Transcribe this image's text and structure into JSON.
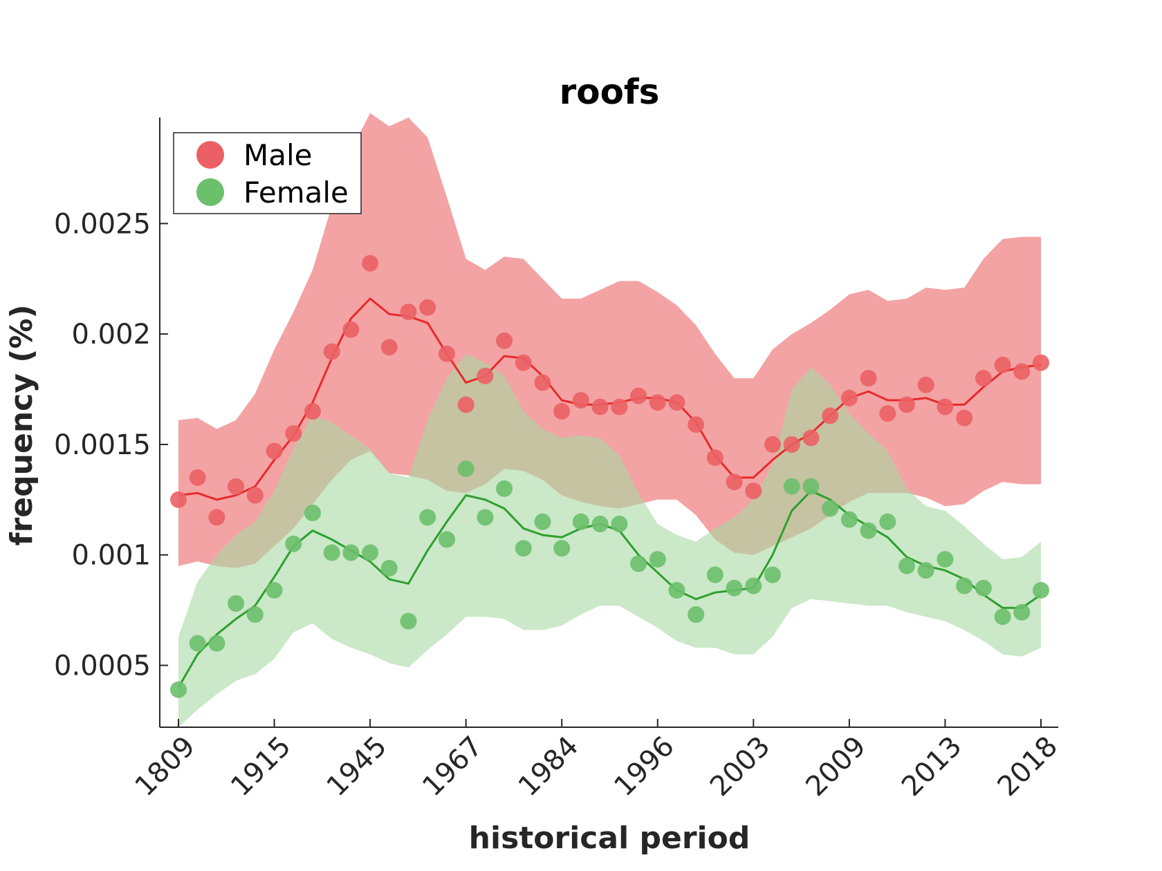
{
  "chart_data": {
    "type": "line",
    "title": "roofs",
    "xlabel": "historical period",
    "ylabel": "frequency (%)",
    "categories": [
      "1809",
      "",
      "",
      "",
      "",
      "1915",
      "",
      "",
      "",
      "",
      "1945",
      "",
      "",
      "",
      "",
      "1967",
      "",
      "",
      "",
      "",
      "1984",
      "",
      "",
      "",
      "",
      "1996",
      "",
      "",
      "",
      "",
      "2003",
      "",
      "",
      "",
      "",
      "2009",
      "",
      "",
      "",
      "",
      "2013",
      "",
      "",
      "",
      "",
      "2018"
    ],
    "ylim": [
      0.00022,
      0.00298
    ],
    "yticks": [
      {
        "value": 0.0005,
        "label": "0.0005"
      },
      {
        "value": 0.001,
        "label": "0.001"
      },
      {
        "value": 0.0015,
        "label": "0.0015"
      },
      {
        "value": 0.002,
        "label": "0.002"
      },
      {
        "value": 0.0025,
        "label": "0.0025"
      }
    ],
    "legend_position": "top-left",
    "series": [
      {
        "name": "Male",
        "color": "#e8292b",
        "fill_color": "#f3a3a4",
        "marker_color": "#eb6064",
        "points": [
          0.00125,
          0.00135,
          0.00117,
          0.00131,
          0.00127,
          0.00147,
          0.00155,
          0.00165,
          0.00192,
          0.00202,
          0.00232,
          0.00194,
          0.0021,
          0.00212,
          0.00191,
          0.00168,
          0.00181,
          0.00197,
          0.00187,
          0.00178,
          0.00165,
          0.0017,
          0.00167,
          0.00167,
          0.00172,
          0.00169,
          0.00169,
          0.00159,
          0.00144,
          0.00133,
          0.00129,
          0.0015,
          0.0015,
          0.00153,
          0.00163,
          0.00171,
          0.0018,
          0.00164,
          0.00168,
          0.00177,
          0.00167,
          0.00162,
          0.0018,
          0.00186,
          0.00183,
          0.00187
        ],
        "line": [
          0.00127,
          0.00128,
          0.00125,
          0.00127,
          0.00131,
          0.00143,
          0.00154,
          0.00169,
          0.00189,
          0.00207,
          0.00216,
          0.00209,
          0.00208,
          0.00205,
          0.00191,
          0.00178,
          0.00181,
          0.0019,
          0.00189,
          0.00181,
          0.0017,
          0.00168,
          0.00168,
          0.00169,
          0.00171,
          0.00171,
          0.00169,
          0.0016,
          0.00145,
          0.00135,
          0.00135,
          0.00143,
          0.0015,
          0.00155,
          0.00163,
          0.00171,
          0.00174,
          0.0017,
          0.0017,
          0.00171,
          0.00168,
          0.00168,
          0.00176,
          0.00183,
          0.00185,
          0.00186
        ],
        "upper": [
          0.00161,
          0.00162,
          0.00157,
          0.00161,
          0.00173,
          0.00193,
          0.0021,
          0.00229,
          0.00258,
          0.00283,
          0.003,
          0.00294,
          0.00298,
          0.00289,
          0.00262,
          0.00234,
          0.00229,
          0.00235,
          0.00234,
          0.00225,
          0.00216,
          0.00216,
          0.0022,
          0.00224,
          0.00224,
          0.00219,
          0.00213,
          0.00204,
          0.00191,
          0.0018,
          0.0018,
          0.00193,
          0.002,
          0.00205,
          0.00211,
          0.00218,
          0.0022,
          0.00215,
          0.00216,
          0.00221,
          0.0022,
          0.00221,
          0.00234,
          0.00243,
          0.00244,
          0.00244
        ],
        "lower": [
          0.00095,
          0.00097,
          0.00095,
          0.00094,
          0.00096,
          0.00104,
          0.00112,
          0.00123,
          0.00134,
          0.00143,
          0.00147,
          0.00137,
          0.00136,
          0.00134,
          0.00129,
          0.00128,
          0.00132,
          0.00139,
          0.00138,
          0.00134,
          0.00127,
          0.00124,
          0.00122,
          0.00121,
          0.00123,
          0.00125,
          0.00125,
          0.00118,
          0.00107,
          0.00101,
          0.001,
          0.00104,
          0.00108,
          0.00112,
          0.00118,
          0.00124,
          0.00128,
          0.00128,
          0.00128,
          0.00126,
          0.00122,
          0.00123,
          0.00129,
          0.00133,
          0.00132,
          0.00132
        ]
      },
      {
        "name": "Female",
        "color": "#2ca02c",
        "fill_color": "#a9d9a3",
        "marker_color": "#6cbf6b",
        "points": [
          0.00039,
          0.0006,
          0.0006,
          0.00078,
          0.00073,
          0.00084,
          0.00105,
          0.00119,
          0.00101,
          0.00101,
          0.00101,
          0.00094,
          0.0007,
          0.00117,
          0.00107,
          0.00139,
          0.00117,
          0.0013,
          0.00103,
          0.00115,
          0.00103,
          0.00115,
          0.00114,
          0.00114,
          0.00096,
          0.00098,
          0.00084,
          0.00073,
          0.00091,
          0.00085,
          0.00086,
          0.00091,
          0.00131,
          0.00131,
          0.00121,
          0.00116,
          0.00111,
          0.00115,
          0.00095,
          0.00093,
          0.00098,
          0.00086,
          0.00085,
          0.00072,
          0.00074,
          0.00084
        ],
        "line": [
          0.0004,
          0.00055,
          0.00064,
          0.00071,
          0.00077,
          0.0009,
          0.00104,
          0.00111,
          0.00107,
          0.00102,
          0.00097,
          0.00089,
          0.00087,
          0.00102,
          0.00115,
          0.00127,
          0.00125,
          0.00121,
          0.00112,
          0.00109,
          0.00108,
          0.00112,
          0.00114,
          0.00111,
          0.001,
          0.00092,
          0.00084,
          0.0008,
          0.00083,
          0.00084,
          0.00085,
          0.001,
          0.0012,
          0.00129,
          0.00125,
          0.00118,
          0.00113,
          0.00108,
          0.00099,
          0.00095,
          0.00093,
          0.00089,
          0.00082,
          0.00076,
          0.00076,
          0.00082
        ],
        "upper": [
          0.00063,
          0.00088,
          0.001,
          0.00109,
          0.00115,
          0.00129,
          0.00148,
          0.00163,
          0.0016,
          0.00154,
          0.00148,
          0.00137,
          0.00135,
          0.00161,
          0.0018,
          0.00191,
          0.00187,
          0.00181,
          0.00165,
          0.00157,
          0.00153,
          0.00154,
          0.00153,
          0.00145,
          0.00128,
          0.00114,
          0.00109,
          0.00106,
          0.00112,
          0.00117,
          0.00125,
          0.00141,
          0.00175,
          0.00185,
          0.00177,
          0.00164,
          0.00155,
          0.00147,
          0.0013,
          0.00122,
          0.0012,
          0.00113,
          0.00105,
          0.00098,
          0.00099,
          0.00106
        ],
        "lower": [
          0.00022,
          0.0003,
          0.00037,
          0.00043,
          0.00046,
          0.00053,
          0.00065,
          0.00069,
          0.00062,
          0.00058,
          0.00055,
          0.00051,
          0.00049,
          0.00057,
          0.00064,
          0.00072,
          0.00072,
          0.00071,
          0.00066,
          0.00066,
          0.00068,
          0.00073,
          0.00077,
          0.00077,
          0.00072,
          0.00067,
          0.00061,
          0.00058,
          0.00058,
          0.00055,
          0.00055,
          0.00063,
          0.00076,
          0.0008,
          0.00079,
          0.00078,
          0.00077,
          0.00077,
          0.00074,
          0.00072,
          0.0007,
          0.00066,
          0.00061,
          0.00055,
          0.00054,
          0.00058
        ]
      }
    ]
  }
}
